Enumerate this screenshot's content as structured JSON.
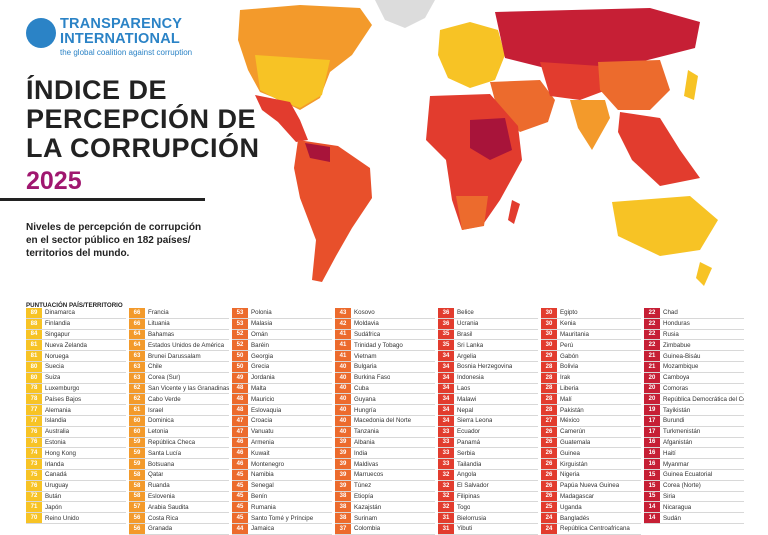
{
  "header": {
    "org_line1": "TRANSPARENCY",
    "org_line2": "INTERNATIONAL",
    "tagline": "the global coalition against corruption",
    "title_lines": [
      "ÍNDICE DE",
      "PERCEPCIÓN DE",
      "LA CORRUPCIÓN"
    ],
    "year": "2025",
    "subtitle": "Niveles de percepción de corrupción en el sector público en 182 países/ territorios del mundo.",
    "column_header": "PUNTUACIÓN PAÍS/TERRITORIO"
  },
  "colors": {
    "brand_blue": "#2b83c6",
    "year_magenta": "#a0176f",
    "yellow": "#f7c325",
    "orange": "#f39a2b",
    "orange_red": "#ec6b2d",
    "red": "#e23c2e",
    "dark_red": "#c61f35",
    "crimson": "#a8143a"
  },
  "columns": [
    {
      "color": "#f7c325",
      "rows": [
        {
          "score": "89",
          "name": "Dinamarca"
        },
        {
          "score": "88",
          "name": "Finlandia"
        },
        {
          "score": "84",
          "name": "Singapur"
        },
        {
          "score": "81",
          "name": "Nueva Zelanda"
        },
        {
          "score": "81",
          "name": "Noruega"
        },
        {
          "score": "80",
          "name": "Suecia"
        },
        {
          "score": "80",
          "name": "Suiza"
        },
        {
          "score": "78",
          "name": "Luxemburgo"
        },
        {
          "score": "78",
          "name": "Países Bajos"
        },
        {
          "score": "77",
          "name": "Alemania"
        },
        {
          "score": "77",
          "name": "Islandia"
        },
        {
          "score": "76",
          "name": "Australia"
        },
        {
          "score": "76",
          "name": "Estonia"
        },
        {
          "score": "74",
          "name": "Hong Kong"
        },
        {
          "score": "73",
          "name": "Irlanda"
        },
        {
          "score": "75",
          "name": "Canadá"
        },
        {
          "score": "76",
          "name": "Uruguay"
        },
        {
          "score": "72",
          "name": "Bután"
        },
        {
          "score": "71",
          "name": "Japón"
        },
        {
          "score": "70",
          "name": "Reino Unido"
        }
      ]
    },
    {
      "color": "#f39a2b",
      "rows": [
        {
          "score": "66",
          "name": "Francia"
        },
        {
          "score": "66",
          "name": "Lituania"
        },
        {
          "score": "64",
          "name": "Bahamas"
        },
        {
          "score": "64",
          "name": "Estados Unidos de América"
        },
        {
          "score": "63",
          "name": "Brunei Darussalam"
        },
        {
          "score": "63",
          "name": "Chile"
        },
        {
          "score": "63",
          "name": "Corea (Sur)"
        },
        {
          "score": "62",
          "name": "San Vicente y las Granadinas"
        },
        {
          "score": "62",
          "name": "Cabo Verde"
        },
        {
          "score": "61",
          "name": "Israel"
        },
        {
          "score": "60",
          "name": "Dominica"
        },
        {
          "score": "60",
          "name": "Letonia"
        },
        {
          "score": "59",
          "name": "República Checa"
        },
        {
          "score": "59",
          "name": "Santa Lucía"
        },
        {
          "score": "59",
          "name": "Botsuana"
        },
        {
          "score": "58",
          "name": "Qatar"
        },
        {
          "score": "58",
          "name": "Ruanda"
        },
        {
          "score": "58",
          "name": "Eslovenia"
        },
        {
          "score": "57",
          "name": "Arabia Saudita"
        },
        {
          "score": "56",
          "name": "Costa Rica"
        },
        {
          "score": "56",
          "name": "Granada"
        }
      ]
    },
    {
      "color": "#ec6b2d",
      "rows": [
        {
          "score": "53",
          "name": "Polonia"
        },
        {
          "score": "53",
          "name": "Malasia"
        },
        {
          "score": "52",
          "name": "Omán"
        },
        {
          "score": "52",
          "name": "Baréin"
        },
        {
          "score": "50",
          "name": "Georgia"
        },
        {
          "score": "50",
          "name": "Grecia"
        },
        {
          "score": "49",
          "name": "Jordania"
        },
        {
          "score": "48",
          "name": "Malta"
        },
        {
          "score": "48",
          "name": "Mauricio"
        },
        {
          "score": "48",
          "name": "Eslovaquia"
        },
        {
          "score": "47",
          "name": "Croacia"
        },
        {
          "score": "47",
          "name": "Vanuatu"
        },
        {
          "score": "46",
          "name": "Armenia"
        },
        {
          "score": "46",
          "name": "Kuwait"
        },
        {
          "score": "46",
          "name": "Montenegro"
        },
        {
          "score": "45",
          "name": "Namibia"
        },
        {
          "score": "45",
          "name": "Senegal"
        },
        {
          "score": "45",
          "name": "Benín"
        },
        {
          "score": "45",
          "name": "Rumania"
        },
        {
          "score": "45",
          "name": "Santo Tomé y Príncipe"
        },
        {
          "score": "44",
          "name": "Jamaica"
        }
      ]
    },
    {
      "color": "#ec6b2d",
      "rows": [
        {
          "score": "43",
          "name": "Kosovo"
        },
        {
          "score": "42",
          "name": "Moldavia"
        },
        {
          "score": "41",
          "name": "Sudáfrica"
        },
        {
          "score": "41",
          "name": "Trinidad y Tobago"
        },
        {
          "score": "41",
          "name": "Vietnam"
        },
        {
          "score": "40",
          "name": "Bulgaria"
        },
        {
          "score": "40",
          "name": "Burkina Faso"
        },
        {
          "score": "40",
          "name": "Cuba"
        },
        {
          "score": "40",
          "name": "Guyana"
        },
        {
          "score": "40",
          "name": "Hungría"
        },
        {
          "score": "40",
          "name": "Macedonia del Norte"
        },
        {
          "score": "40",
          "name": "Tanzania"
        },
        {
          "score": "39",
          "name": "Albania"
        },
        {
          "score": "39",
          "name": "India"
        },
        {
          "score": "39",
          "name": "Maldivas"
        },
        {
          "score": "39",
          "name": "Marruecos"
        },
        {
          "score": "39",
          "name": "Túnez"
        },
        {
          "score": "38",
          "name": "Etiopía"
        },
        {
          "score": "38",
          "name": "Kazajstán"
        },
        {
          "score": "38",
          "name": "Surinam"
        },
        {
          "score": "37",
          "name": "Colombia"
        }
      ]
    },
    {
      "color": "#e23c2e",
      "rows": [
        {
          "score": "36",
          "name": "Belice"
        },
        {
          "score": "36",
          "name": "Ucrania"
        },
        {
          "score": "35",
          "name": "Brasil"
        },
        {
          "score": "35",
          "name": "Sri Lanka"
        },
        {
          "score": "34",
          "name": "Argelia"
        },
        {
          "score": "34",
          "name": "Bosnia Herzegovina"
        },
        {
          "score": "34",
          "name": "Indonesia"
        },
        {
          "score": "34",
          "name": "Laos"
        },
        {
          "score": "34",
          "name": "Malawi"
        },
        {
          "score": "34",
          "name": "Nepal"
        },
        {
          "score": "34",
          "name": "Sierra Leona"
        },
        {
          "score": "33",
          "name": "Ecuador"
        },
        {
          "score": "33",
          "name": "Panamá"
        },
        {
          "score": "33",
          "name": "Serbia"
        },
        {
          "score": "33",
          "name": "Tailandia"
        },
        {
          "score": "32",
          "name": "Angola"
        },
        {
          "score": "32",
          "name": "El Salvador"
        },
        {
          "score": "32",
          "name": "Filipinas"
        },
        {
          "score": "32",
          "name": "Togo"
        },
        {
          "score": "31",
          "name": "Bielorrusia"
        },
        {
          "score": "31",
          "name": "Yibuti"
        }
      ]
    },
    {
      "color": "#e23c2e",
      "rows": [
        {
          "score": "30",
          "name": "Egipto"
        },
        {
          "score": "30",
          "name": "Kenia"
        },
        {
          "score": "30",
          "name": "Mauritania"
        },
        {
          "score": "30",
          "name": "Perú"
        },
        {
          "score": "29",
          "name": "Gabón"
        },
        {
          "score": "28",
          "name": "Bolivia"
        },
        {
          "score": "28",
          "name": "Irak"
        },
        {
          "score": "28",
          "name": "Liberia"
        },
        {
          "score": "28",
          "name": "Malí"
        },
        {
          "score": "28",
          "name": "Pakistán"
        },
        {
          "score": "27",
          "name": "México"
        },
        {
          "score": "26",
          "name": "Camerún"
        },
        {
          "score": "26",
          "name": "Guatemala"
        },
        {
          "score": "26",
          "name": "Guinea"
        },
        {
          "score": "26",
          "name": "Kirguistán"
        },
        {
          "score": "26",
          "name": "Nigeria"
        },
        {
          "score": "26",
          "name": "Papúa Nueva Guinea"
        },
        {
          "score": "26",
          "name": "Madagascar"
        },
        {
          "score": "25",
          "name": "Uganda"
        },
        {
          "score": "24",
          "name": "Bangladés"
        },
        {
          "score": "24",
          "name": "República Centroafricana"
        }
      ]
    },
    {
      "color": "#c61f35",
      "rows": [
        {
          "score": "22",
          "name": "Chad"
        },
        {
          "score": "22",
          "name": "Honduras"
        },
        {
          "score": "22",
          "name": "Rusia"
        },
        {
          "score": "22",
          "name": "Zimbabue"
        },
        {
          "score": "21",
          "name": "Guinea-Bisáu"
        },
        {
          "score": "21",
          "name": "Mozambique"
        },
        {
          "score": "20",
          "name": "Camboya"
        },
        {
          "score": "20",
          "name": "Comoras"
        },
        {
          "score": "20",
          "name": "República Democrática del Congo"
        },
        {
          "score": "19",
          "name": "Tayikistán"
        },
        {
          "score": "17",
          "name": "Burundi"
        },
        {
          "score": "17",
          "name": "Turkmenistán"
        },
        {
          "score": "16",
          "name": "Afganistán"
        },
        {
          "score": "16",
          "name": "Haití"
        },
        {
          "score": "16",
          "name": "Myanmar"
        },
        {
          "score": "15",
          "name": "Guinea Ecuatorial"
        },
        {
          "score": "15",
          "name": "Corea (Norte)"
        },
        {
          "score": "15",
          "name": "Siria"
        },
        {
          "score": "14",
          "name": "Nicaragua"
        },
        {
          "score": "14",
          "name": "Sudán"
        }
      ]
    }
  ]
}
